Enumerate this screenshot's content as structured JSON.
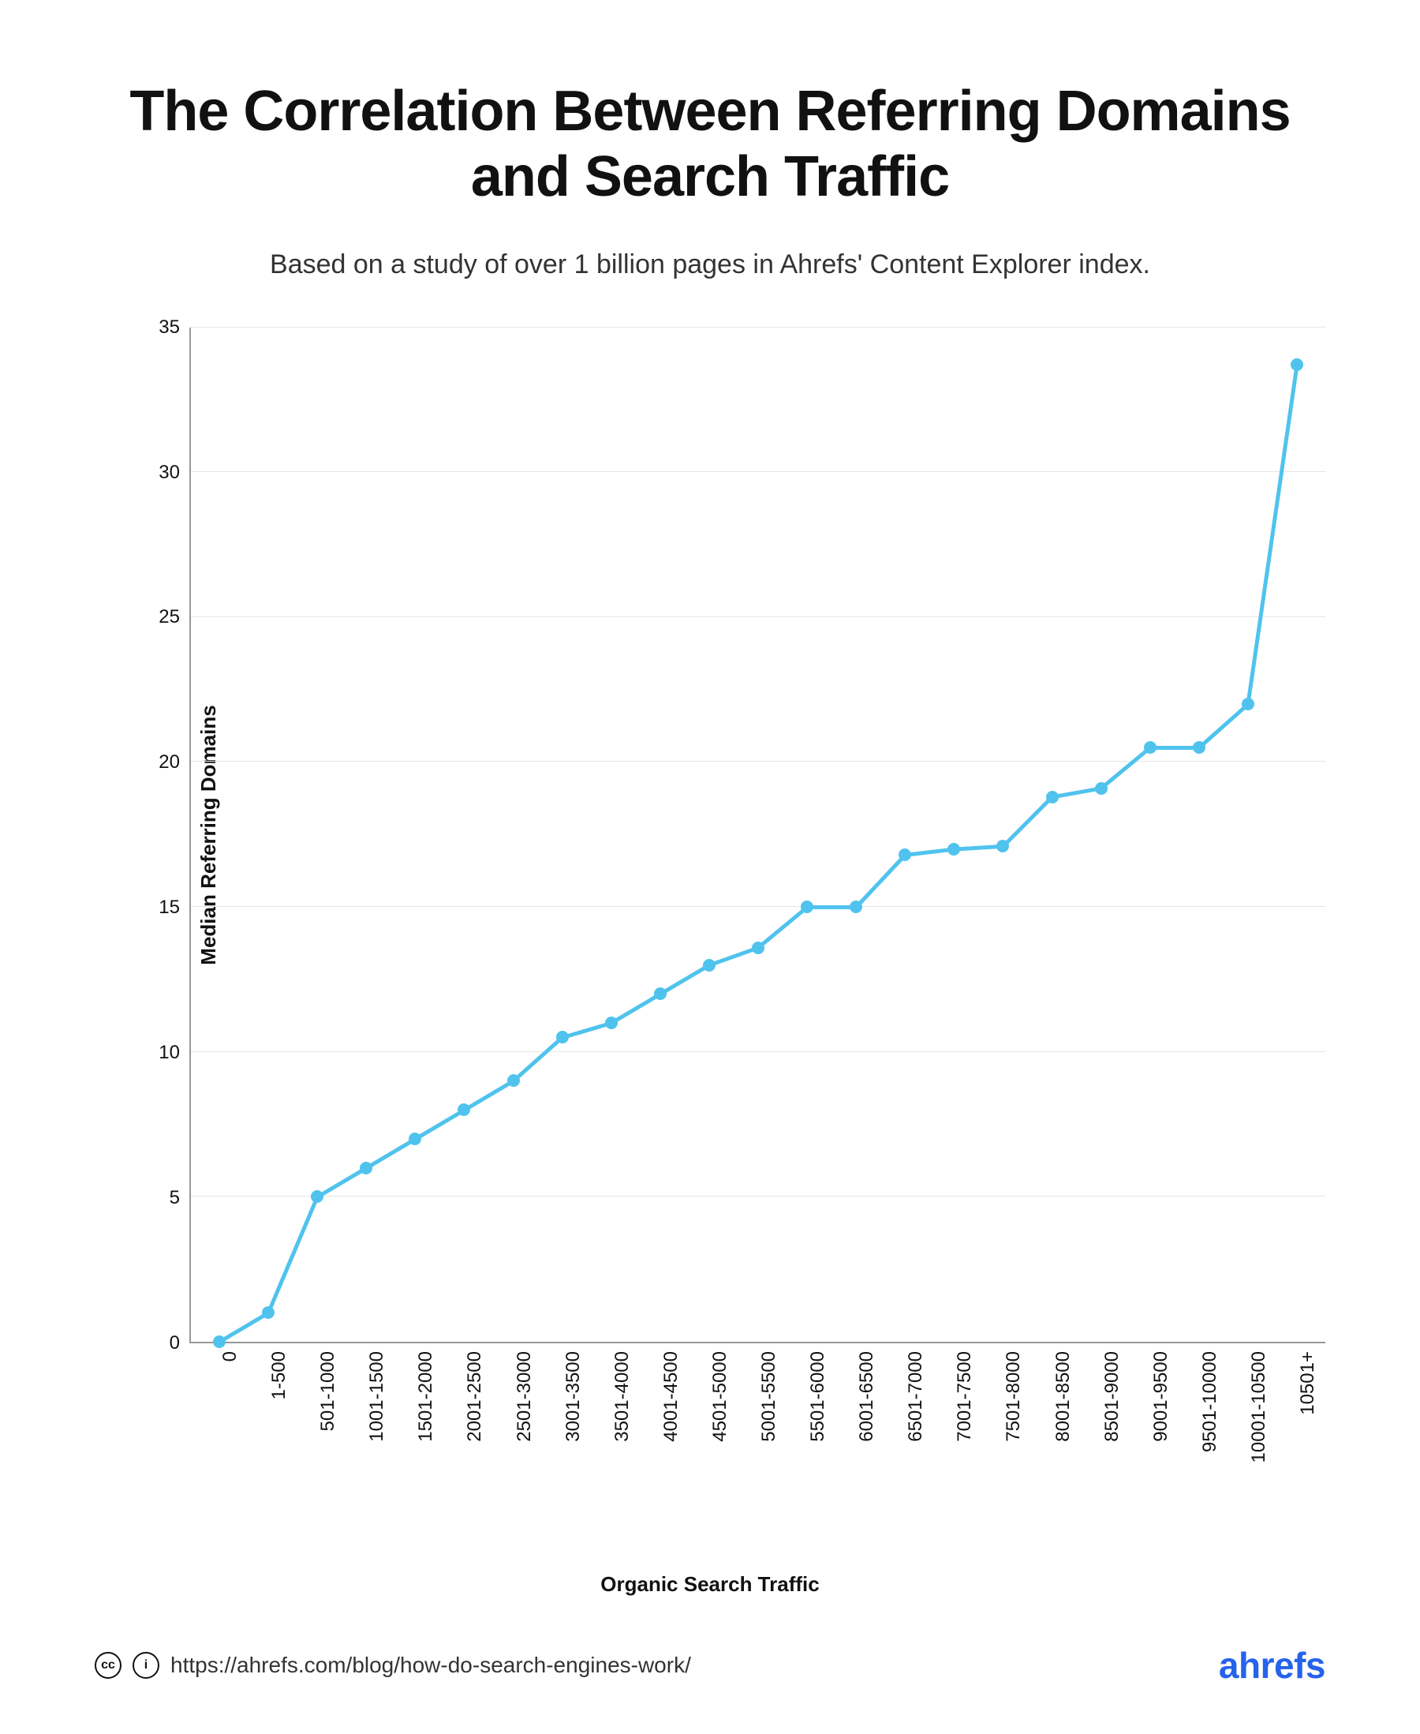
{
  "chart": {
    "type": "line",
    "title": "The Correlation Between Referring Domains and Search Traffic",
    "title_fontsize": 72,
    "subtitle": "Based on a study of over 1 billion pages in Ahrefs' Content Explorer index.",
    "subtitle_fontsize": 34,
    "y_axis_label": "Median Referring Domains",
    "x_axis_label": "Organic Search Traffic",
    "axis_label_fontsize": 26,
    "tick_fontsize": 24,
    "line_color": "#4fc3ed",
    "marker_color": "#4fc3ed",
    "line_width": 5,
    "marker_radius": 8,
    "background_color": "#ffffff",
    "grid_color": "#e5e5e5",
    "axis_color": "#999999",
    "ylim": [
      0,
      35
    ],
    "ytick_step": 5,
    "y_ticks": [
      0,
      5,
      10,
      15,
      20,
      25,
      30,
      35
    ],
    "categories": [
      "0",
      "1-500",
      "501-1000",
      "1001-1500",
      "1501-2000",
      "2001-2500",
      "2501-3000",
      "3001-3500",
      "3501-4000",
      "4001-4500",
      "4501-5000",
      "5001-5500",
      "5501-6000",
      "6001-6500",
      "6501-7000",
      "7001-7500",
      "7501-8000",
      "8001-8500",
      "8501-9000",
      "9001-9500",
      "9501-10000",
      "10001-10500",
      "10501+"
    ],
    "values": [
      0,
      1,
      5,
      6,
      7,
      8,
      9,
      10.5,
      11,
      12,
      13,
      13.6,
      15,
      15,
      16.8,
      17,
      17.1,
      18.8,
      19.1,
      20.5,
      20.5,
      22,
      33.7
    ],
    "x_padding_pct": 2.5
  },
  "footer": {
    "url": "https://ahrefs.com/blog/how-do-search-engines-work/",
    "url_fontsize": 28,
    "logo_text": "ahrefs",
    "logo_color": "#2563eb",
    "logo_fontsize": 46,
    "cc_label": "cc",
    "by_label": "i"
  }
}
